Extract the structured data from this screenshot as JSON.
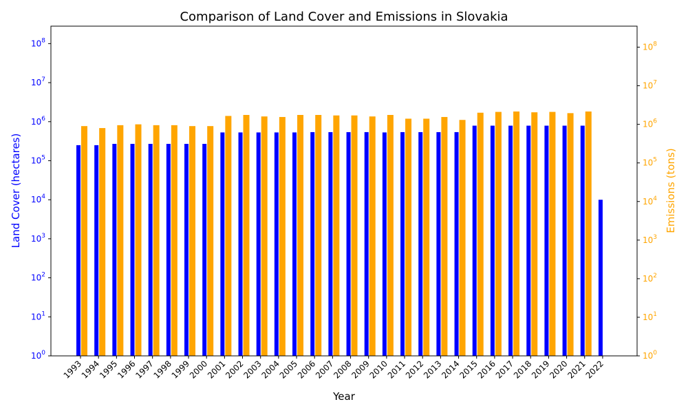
{
  "chart_data": {
    "type": "bar",
    "title": "Comparison of Land Cover and Emissions in Slovakia",
    "xlabel": "Year",
    "ylabel_left": "Land Cover (hectares)",
    "ylabel_right": "Emissions (tons)",
    "yscale": "log",
    "ylim_left": [
      1,
      280000000
    ],
    "ylim_right": [
      1,
      350000000
    ],
    "y_ticks": [
      {
        "value": 1,
        "base": "10",
        "exp": "0"
      },
      {
        "value": 10,
        "base": "10",
        "exp": "1"
      },
      {
        "value": 100,
        "base": "10",
        "exp": "2"
      },
      {
        "value": 1000,
        "base": "10",
        "exp": "3"
      },
      {
        "value": 10000,
        "base": "10",
        "exp": "4"
      },
      {
        "value": 100000,
        "base": "10",
        "exp": "5"
      },
      {
        "value": 1000000,
        "base": "10",
        "exp": "6"
      },
      {
        "value": 10000000,
        "base": "10",
        "exp": "7"
      },
      {
        "value": 100000000,
        "base": "10",
        "exp": "8"
      }
    ],
    "grid": false,
    "legend": "none",
    "categories": [
      "1993",
      "1994",
      "1995",
      "1996",
      "1997",
      "1998",
      "1999",
      "2000",
      "2001",
      "2002",
      "2003",
      "2004",
      "2005",
      "2006",
      "2007",
      "2008",
      "2009",
      "2010",
      "2011",
      "2012",
      "2013",
      "2014",
      "2015",
      "2016",
      "2017",
      "2018",
      "2019",
      "2020",
      "2021",
      "2022"
    ],
    "series": [
      {
        "axis": "left",
        "color": "#0000ff",
        "values": [
          250000,
          250000,
          270000,
          270000,
          270000,
          270000,
          270000,
          270000,
          530000,
          530000,
          530000,
          530000,
          530000,
          540000,
          540000,
          540000,
          540000,
          530000,
          540000,
          540000,
          540000,
          540000,
          790000,
          790000,
          790000,
          790000,
          790000,
          790000,
          790000,
          10000
        ]
      },
      {
        "axis": "right",
        "color": "#ffa500",
        "values": [
          900000,
          800000,
          950000,
          1000000,
          950000,
          950000,
          900000,
          900000,
          1650000,
          1750000,
          1600000,
          1550000,
          1750000,
          1750000,
          1700000,
          1700000,
          1600000,
          1750000,
          1400000,
          1400000,
          1550000,
          1300000,
          2000000,
          2100000,
          2150000,
          2050000,
          2100000,
          1950000,
          2150000,
          null
        ]
      }
    ],
    "colors": {
      "left_axis": "#0000ff",
      "right_axis": "#ffa500",
      "title": "#000000"
    }
  }
}
